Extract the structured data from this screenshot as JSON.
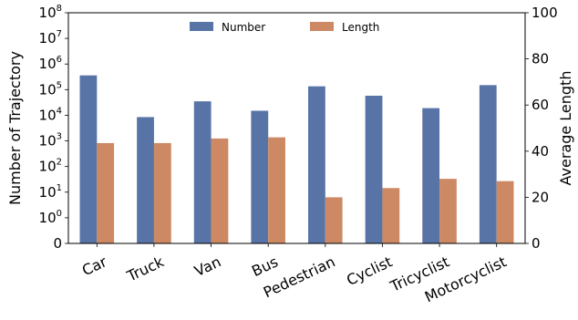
{
  "chart_data": {
    "type": "bar",
    "categories": [
      "Car",
      "Truck",
      "Van",
      "Bus",
      "Pedestrian",
      "Cyclist",
      "Tricyclist",
      "Motorcyclist"
    ],
    "series": [
      {
        "name": "Number",
        "axis": "left",
        "color": "#5874a6",
        "values": [
          360000,
          8500,
          35000,
          15000,
          135000,
          58000,
          19000,
          150000
        ]
      },
      {
        "name": "Length",
        "axis": "right",
        "color": "#cc8963",
        "values": [
          43.5,
          43.5,
          45.5,
          46,
          20,
          24,
          28,
          27
        ]
      }
    ],
    "ylabel": "Number of Trajectory",
    "y2label": "Average Length",
    "yscale": "symlog",
    "ylim": [
      0,
      100000000
    ],
    "yticks": [
      {
        "base": "0",
        "exp": ""
      },
      {
        "base": "10",
        "exp": "0"
      },
      {
        "base": "10",
        "exp": "1"
      },
      {
        "base": "10",
        "exp": "2"
      },
      {
        "base": "10",
        "exp": "3"
      },
      {
        "base": "10",
        "exp": "4"
      },
      {
        "base": "10",
        "exp": "5"
      },
      {
        "base": "10",
        "exp": "6"
      },
      {
        "base": "10",
        "exp": "7"
      },
      {
        "base": "10",
        "exp": "8"
      }
    ],
    "y2lim": [
      0,
      100
    ],
    "y2ticks": [
      "0",
      "20",
      "40",
      "60",
      "80",
      "100"
    ],
    "grid": false,
    "legend_position": "top-center"
  }
}
